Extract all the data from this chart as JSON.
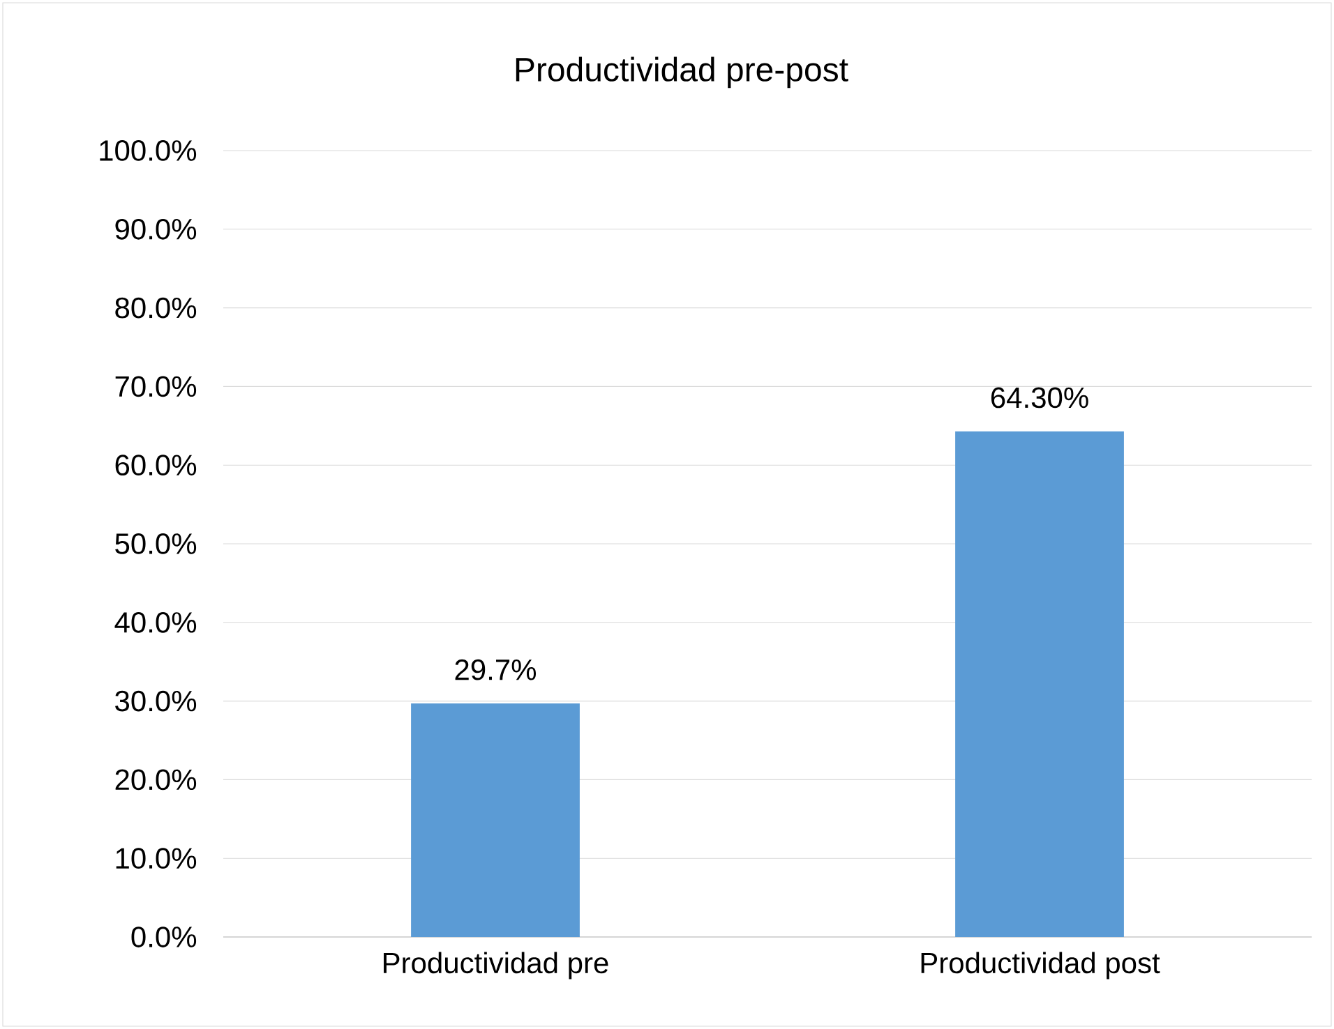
{
  "chart_data": {
    "type": "bar",
    "title": "Productividad pre-post",
    "categories": [
      "Productividad pre",
      "Productividad post"
    ],
    "values": [
      29.7,
      64.3
    ],
    "color": "#5b9bd5",
    "value_labels": [
      "29.7%",
      "64.30%"
    ],
    "ylim": [
      0,
      100
    ],
    "yticks": [
      {
        "value": 0,
        "label": "0.0%"
      },
      {
        "value": 10,
        "label": "10.0%"
      },
      {
        "value": 20,
        "label": "20.0%"
      },
      {
        "value": 30,
        "label": "30.0%"
      },
      {
        "value": 40,
        "label": "40.0%"
      },
      {
        "value": 50,
        "label": "50.0%"
      },
      {
        "value": 60,
        "label": "60.0%"
      },
      {
        "value": 70,
        "label": "70.0%"
      },
      {
        "value": 80,
        "label": "80.0%"
      },
      {
        "value": 90,
        "label": "90.0%"
      },
      {
        "value": 100,
        "label": "100.0%"
      }
    ],
    "grid": "y"
  }
}
